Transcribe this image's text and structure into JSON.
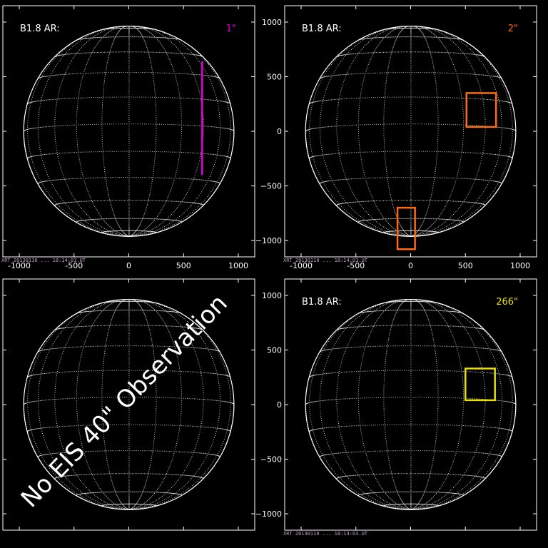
{
  "panels": [
    {
      "id": "tl",
      "label": "B1.8 AR:",
      "tag": "1\"",
      "tag_color": "#e000e0",
      "stamp": "XRT 20130110 ... 18:14:03.UT",
      "show_y_ticks": false,
      "show_x_ticks": true,
      "markers": [
        {
          "kind": "line",
          "x": 670,
          "y0": -400,
          "y1": 640,
          "color": "#e000e0"
        }
      ]
    },
    {
      "id": "tr",
      "label": "B1.8 AR:",
      "tag": "2\"",
      "tag_color": "#ff6a10",
      "stamp": "XRT 20130110 ... 18:14:03.UT",
      "show_y_ticks": true,
      "show_x_ticks": true,
      "markers": [
        {
          "kind": "rect",
          "x0": 510,
          "x1": 780,
          "y0": 40,
          "y1": 350,
          "color": "#ff6a10"
        },
        {
          "kind": "rect",
          "x0": -120,
          "x1": 40,
          "y0": -1080,
          "y1": -700,
          "color": "#ff6a10"
        }
      ]
    },
    {
      "id": "bl",
      "label": "",
      "tag": "",
      "tag_color": "#ffffff",
      "stamp": "",
      "show_y_ticks": false,
      "show_x_ticks": false,
      "markers": [],
      "overlay": "No EIS 40\" Observation"
    },
    {
      "id": "br",
      "label": "B1.8 AR:",
      "tag": "266\"",
      "tag_color": "#e8e000",
      "stamp": "XRT 20130110 ... 18:14:03.UT",
      "show_y_ticks": true,
      "show_x_ticks": false,
      "markers": [
        {
          "kind": "rect",
          "x0": 500,
          "x1": 770,
          "y0": 40,
          "y1": 330,
          "color": "#e8e000"
        }
      ]
    }
  ],
  "axes": {
    "x_ticks": [
      -1000,
      -500,
      0,
      500,
      1000
    ],
    "y_ticks": [
      1000,
      500,
      0,
      -500,
      -1000
    ],
    "x_tick_labels": [
      "-1000",
      "-500",
      "0",
      "500",
      "1000"
    ],
    "y_tick_labels": [
      "1000",
      "500",
      "0",
      "−500",
      "−1000"
    ],
    "range": [
      -1150,
      1150
    ]
  },
  "colors": {
    "background": "#000000",
    "limb": "#ffffff",
    "grid": "#ffffff"
  }
}
